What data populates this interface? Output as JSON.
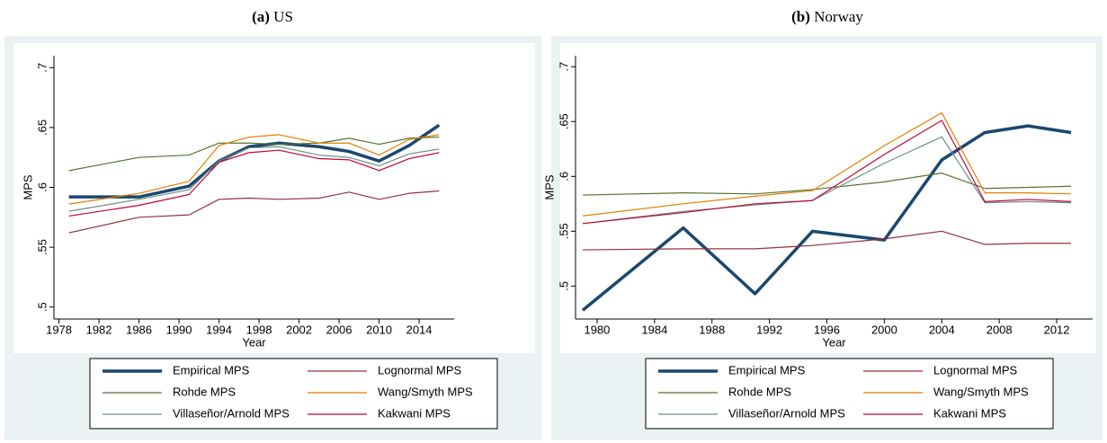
{
  "chart_data": [
    {
      "type": "line",
      "panel_label": "(a)",
      "title": "US",
      "ylabel": "MPS",
      "xlabel": "Year",
      "x": [
        1979,
        1986,
        1991,
        1994,
        1997,
        2000,
        2004,
        2007,
        2010,
        2013,
        2016
      ],
      "xlim": [
        1977.5,
        2017.5
      ],
      "xticks": [
        1978,
        1982,
        1986,
        1990,
        1994,
        1998,
        2002,
        2006,
        2010,
        2014
      ],
      "ylim": [
        0.49,
        0.71
      ],
      "yticks": [
        {
          "value": 0.5,
          "label": ".5"
        },
        {
          "value": 0.55,
          "label": ".55"
        },
        {
          "value": 0.6,
          "label": ".6"
        },
        {
          "value": 0.65,
          "label": ".65"
        },
        {
          "value": 0.7,
          "label": ".7"
        }
      ],
      "series": [
        {
          "name": "Empirical MPS",
          "color": "#1a476f",
          "values": [
            0.592,
            0.592,
            0.601,
            0.622,
            0.634,
            0.637,
            0.634,
            0.63,
            0.622,
            0.635,
            0.652
          ]
        },
        {
          "name": "Lognormal MPS",
          "color": "#90353b",
          "values": [
            0.562,
            0.575,
            0.577,
            0.59,
            0.591,
            0.59,
            0.591,
            0.596,
            0.59,
            0.595,
            0.597
          ]
        },
        {
          "name": "Rohde MPS",
          "color": "#55752f",
          "values": [
            0.614,
            0.625,
            0.627,
            0.637,
            0.637,
            0.636,
            0.637,
            0.641,
            0.636,
            0.641,
            0.642
          ]
        },
        {
          "name": "Wang/Smyth MPS",
          "color": "#e37e00",
          "values": [
            0.586,
            0.595,
            0.605,
            0.635,
            0.642,
            0.644,
            0.637,
            0.637,
            0.627,
            0.64,
            0.644
          ]
        },
        {
          "name": "Villaseñor/Arnold MPS",
          "color": "#6e8e84",
          "values": [
            0.58,
            0.59,
            0.598,
            0.622,
            0.633,
            0.634,
            0.627,
            0.625,
            0.618,
            0.628,
            0.632
          ]
        },
        {
          "name": "Kakwani MPS",
          "color": "#c10534",
          "values": [
            0.576,
            0.585,
            0.594,
            0.621,
            0.629,
            0.631,
            0.624,
            0.623,
            0.614,
            0.624,
            0.629
          ]
        }
      ]
    },
    {
      "type": "line",
      "panel_label": "(b)",
      "title": "Norway",
      "ylabel": "MPS",
      "xlabel": "Year",
      "x": [
        1979,
        1986,
        1991,
        1995,
        2000,
        2004,
        2007,
        2010,
        2013
      ],
      "xlim": [
        1978.5,
        2014.5
      ],
      "xticks": [
        1980,
        1984,
        1988,
        1992,
        1996,
        2000,
        2004,
        2008,
        2012
      ],
      "ylim": [
        0.47,
        0.71
      ],
      "yticks": [
        {
          "value": 0.5,
          "label": ".5"
        },
        {
          "value": 0.55,
          "label": ".55"
        },
        {
          "value": 0.6,
          "label": ".6"
        },
        {
          "value": 0.65,
          "label": ".65"
        },
        {
          "value": 0.7,
          "label": ".7"
        }
      ],
      "series": [
        {
          "name": "Empirical MPS",
          "color": "#1a476f",
          "values": [
            0.478,
            0.553,
            0.493,
            0.55,
            0.542,
            0.615,
            0.64,
            0.646,
            0.64
          ]
        },
        {
          "name": "Lognormal MPS",
          "color": "#90353b",
          "values": [
            0.533,
            0.534,
            0.534,
            0.537,
            0.543,
            0.55,
            0.538,
            0.539,
            0.539
          ]
        },
        {
          "name": "Rohde MPS",
          "color": "#55752f",
          "values": [
            0.583,
            0.585,
            0.584,
            0.588,
            0.595,
            0.603,
            0.589,
            0.59,
            0.591
          ]
        },
        {
          "name": "Wang/Smyth MPS",
          "color": "#e37e00",
          "values": [
            0.564,
            0.575,
            0.582,
            0.587,
            0.628,
            0.658,
            0.585,
            0.585,
            0.584
          ]
        },
        {
          "name": "Villaseñor/Arnold MPS",
          "color": "#6e8e84",
          "values": [
            0.557,
            0.568,
            0.574,
            0.578,
            0.612,
            0.636,
            0.576,
            0.577,
            0.576
          ]
        },
        {
          "name": "Kakwani MPS",
          "color": "#c10534",
          "values": [
            0.557,
            0.567,
            0.575,
            0.578,
            0.62,
            0.651,
            0.577,
            0.579,
            0.577
          ]
        }
      ]
    }
  ]
}
